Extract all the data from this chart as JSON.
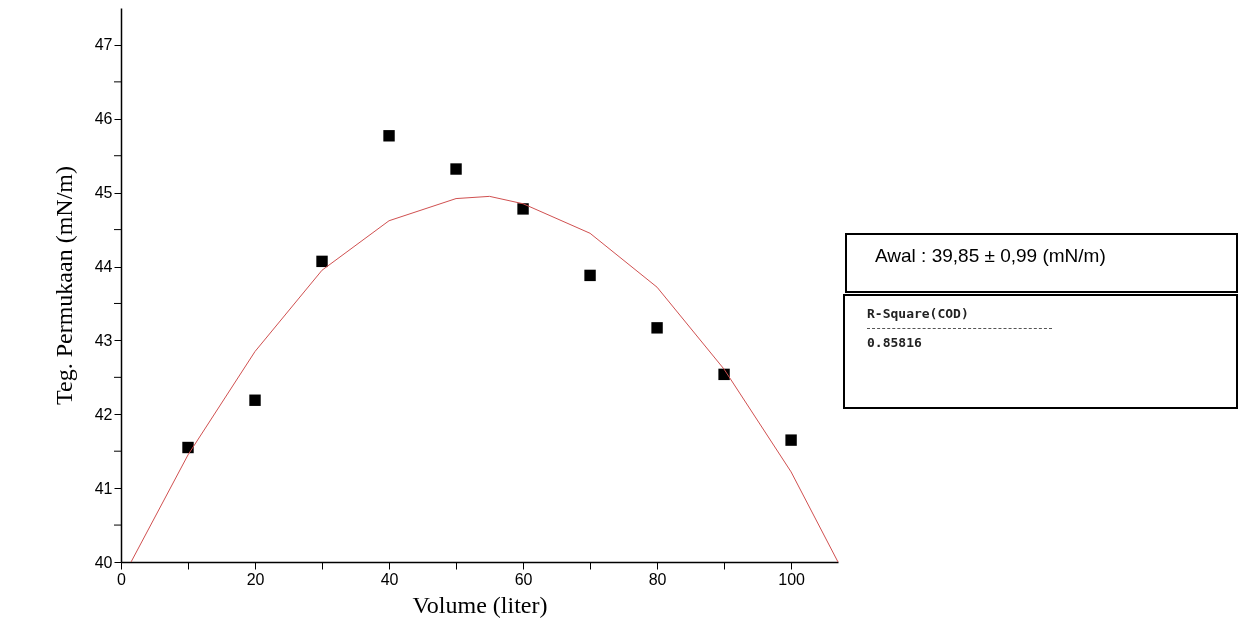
{
  "chart_data": {
    "type": "scatter",
    "xlabel": "Volume  (liter)",
    "ylabel": "Teg. Permukaan (mN/m)",
    "xlim": [
      0,
      107
    ],
    "ylim": [
      40,
      47.5
    ],
    "xticks": [
      0,
      {
        "value": 10,
        "label": null
      },
      20,
      {
        "value": 30,
        "label": null
      },
      40,
      {
        "value": 50,
        "label": null
      },
      60,
      {
        "value": 70,
        "label": null
      },
      80,
      {
        "value": 90,
        "label": null
      },
      100
    ],
    "yticks": [
      40,
      {
        "value": 40.5,
        "label": null
      },
      41,
      {
        "value": 41.5,
        "label": null
      },
      42,
      {
        "value": 42.5,
        "label": null
      },
      43,
      {
        "value": 43.5,
        "label": null
      },
      44,
      {
        "value": 44.5,
        "label": null
      },
      45,
      {
        "value": 45.5,
        "label": null
      },
      46,
      {
        "value": 46.5,
        "label": null
      },
      47
    ],
    "grid": false,
    "series": [
      {
        "marker": "square",
        "color": "#000000",
        "x": [
          10,
          20,
          30,
          40,
          50,
          60,
          70,
          80,
          90,
          100
        ],
        "values": [
          41.55,
          42.19,
          44.07,
          45.77,
          45.32,
          44.78,
          43.88,
          43.17,
          42.54,
          41.65
        ]
      },
      {
        "type": "line",
        "color": "#d05050",
        "x": [
          1.5,
          10,
          20,
          30,
          40,
          50,
          55,
          60,
          70,
          80,
          90,
          100,
          107
        ],
        "values": [
          40,
          41.45,
          42.85,
          43.95,
          44.62,
          44.92,
          44.95,
          44.85,
          44.45,
          43.72,
          42.61,
          41.22,
          40
        ]
      }
    ],
    "annotations": [
      "Awal : 39,85 ± 0,99 (mN/m)",
      "R-Square(COD)",
      "0.85816"
    ]
  }
}
